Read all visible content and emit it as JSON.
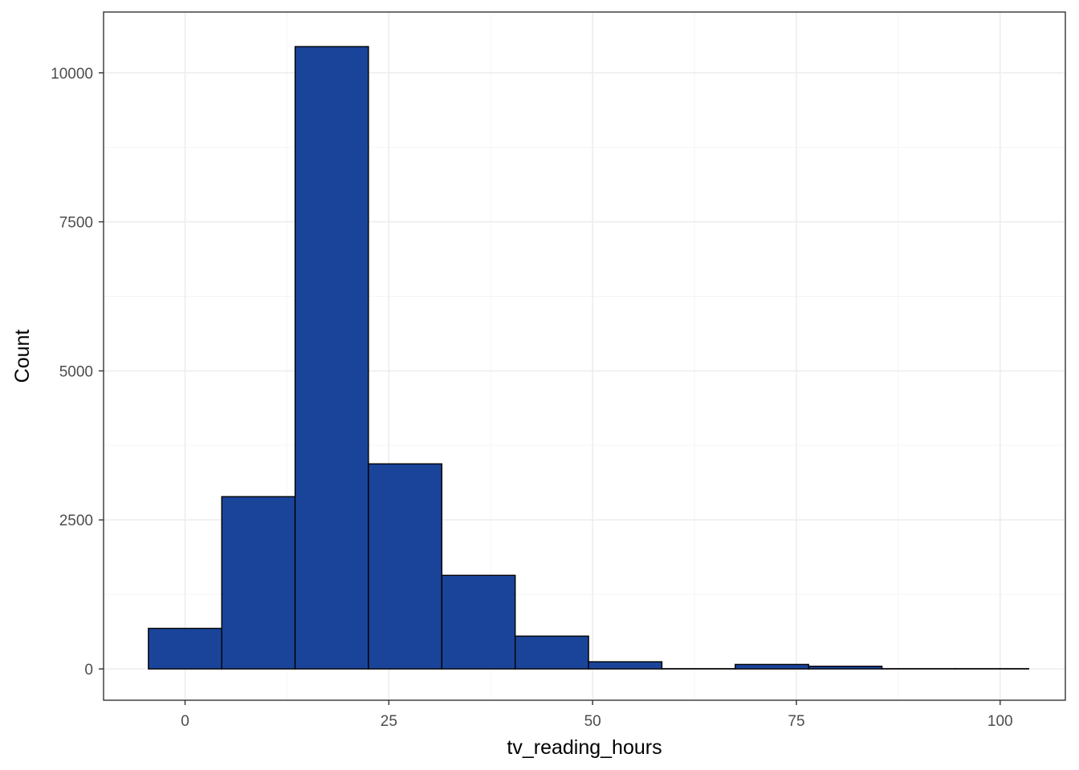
{
  "chart_data": {
    "type": "bar",
    "xlabel": "tv_reading_hours",
    "ylabel": "Count",
    "xlim": [
      -10,
      108
    ],
    "ylim": [
      -525,
      11020
    ],
    "x_ticks": [
      0,
      25,
      50,
      75,
      100
    ],
    "y_ticks": [
      0,
      2500,
      5000,
      7500,
      10000
    ],
    "grid": true,
    "bin_width": 9.0,
    "bins": [
      {
        "x0": -4.5,
        "x1": 4.5,
        "count": 680
      },
      {
        "x0": 4.5,
        "x1": 13.5,
        "count": 2890
      },
      {
        "x0": 13.5,
        "x1": 22.5,
        "count": 10440
      },
      {
        "x0": 22.5,
        "x1": 31.5,
        "count": 3440
      },
      {
        "x0": 31.5,
        "x1": 40.5,
        "count": 1570
      },
      {
        "x0": 40.5,
        "x1": 49.5,
        "count": 550
      },
      {
        "x0": 49.5,
        "x1": 58.5,
        "count": 120
      },
      {
        "x0": 58.5,
        "x1": 67.5,
        "count": 5
      },
      {
        "x0": 67.5,
        "x1": 76.5,
        "count": 75
      },
      {
        "x0": 76.5,
        "x1": 85.5,
        "count": 45
      },
      {
        "x0": 85.5,
        "x1": 94.5,
        "count": 5
      },
      {
        "x0": 94.5,
        "x1": 103.5,
        "count": 5
      }
    ],
    "colors": {
      "bar_fill": "#1a4499",
      "bar_stroke": "#000000",
      "grid_major": "#ebebeb",
      "grid_minor": "#f5f5f5",
      "panel_border": "#333333"
    }
  }
}
